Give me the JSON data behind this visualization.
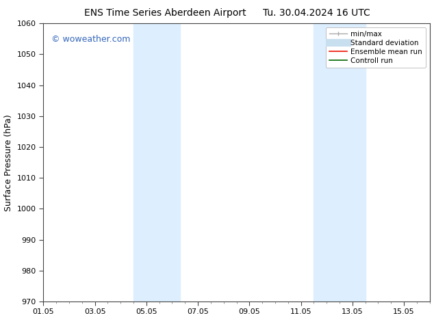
{
  "title_left": "ENS Time Series Aberdeen Airport",
  "title_right": "Tu. 30.04.2024 16 UTC",
  "ylabel": "Surface Pressure (hPa)",
  "ylim": [
    970,
    1060
  ],
  "yticks": [
    970,
    980,
    990,
    1000,
    1010,
    1020,
    1030,
    1040,
    1050,
    1060
  ],
  "xtick_labels": [
    "01.05",
    "03.05",
    "05.05",
    "07.05",
    "09.05",
    "11.05",
    "13.05",
    "15.05"
  ],
  "xtick_positions": [
    0,
    2,
    4,
    6,
    8,
    10,
    12,
    14
  ],
  "xlim": [
    0,
    15
  ],
  "shaded_bands": [
    {
      "x_start": 3.5,
      "x_end": 5.3
    },
    {
      "x_start": 10.5,
      "x_end": 12.5
    }
  ],
  "shade_color": "#ddeeff",
  "background_color": "#ffffff",
  "watermark_text": "© woweather.com",
  "watermark_color": "#3366bb",
  "watermark_fontsize": 9,
  "legend_items": [
    {
      "label": "min/max",
      "color": "#aaaaaa",
      "lw": 1
    },
    {
      "label": "Standard deviation",
      "color": "#c8dff0",
      "lw": 8
    },
    {
      "label": "Ensemble mean run",
      "color": "#ee1100",
      "lw": 1.2
    },
    {
      "label": "Controll run",
      "color": "#006600",
      "lw": 1.2
    }
  ],
  "title_fontsize": 10,
  "ylabel_fontsize": 9,
  "tick_fontsize": 8,
  "legend_fontsize": 7.5
}
